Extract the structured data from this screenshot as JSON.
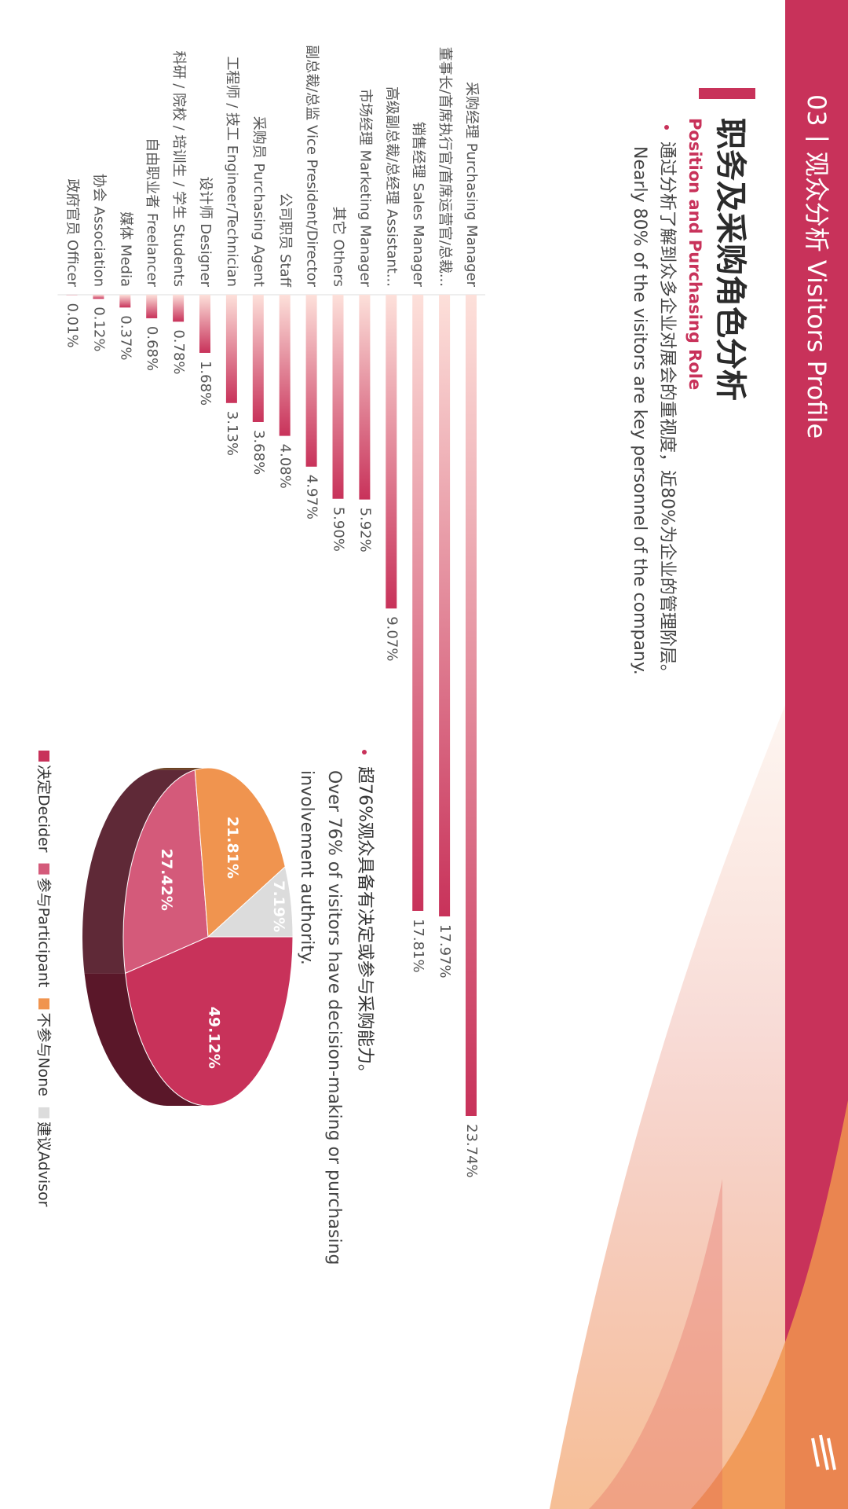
{
  "text": {
    "section": "03丨观众分析 Visitors Profile",
    "title": "职务及采购角色分析",
    "subtitle": "Position and Purchasing Role",
    "bullet_1_cn": "通过分析了解到众多企业对展会的重视度，近80%为企业的管理阶层。",
    "bullet_1_en": "Nearly 80% of the visitors are key personnel of the company.",
    "bullet_2_cn": "超76%观众具备有决定或参与采购能力。",
    "bullet_2_en_1": "Over 76% of visitors have decision-making or purchasing",
    "bullet_2_en_2": "involvement authority."
  },
  "chart_data": [
    {
      "type": "bar",
      "orientation": "horizontal",
      "color": "#c8325a",
      "categories": [
        "采购经理 Purchasing Manager",
        "董事长/首席执行官/首席运营官/总裁...",
        "销售经理 Sales Manager",
        "高级副总裁/总经理 Assistant...",
        "市场经理 Marketing Manager",
        "其它 Others",
        "副总裁/总监 Vice President/Director",
        "公司职员 Staff",
        "采购员 Purchasing Agent",
        "工程师 / 技工 Engineer/Technician",
        "设计师 Designer",
        "科研 / 院校 / 培训生 / 学生 Students",
        "自由职业者 Freelancer",
        "媒体 Media",
        "协会 Association",
        "政府官员 Officer"
      ],
      "values": [
        23.74,
        17.97,
        17.81,
        9.07,
        5.92,
        5.9,
        4.97,
        4.08,
        3.68,
        3.13,
        1.68,
        0.78,
        0.68,
        0.37,
        0.12,
        0.01
      ],
      "value_labels": [
        "23.74%",
        "17.97%",
        "17.81%",
        "9.07%",
        "5.92%",
        "5.90%",
        "4.97%",
        "4.08%",
        "3.68%",
        "3.13%",
        "1.68%",
        "0.78%",
        "0.68%",
        "0.37%",
        "0.12%",
        "0.01%"
      ]
    },
    {
      "type": "pie",
      "categories": [
        "决定Decider",
        "参与Participant",
        "不参与None",
        "建议Advisor"
      ],
      "values": [
        49.12,
        27.42,
        21.81,
        7.19
      ],
      "value_labels": [
        "49.12%",
        "27.42%",
        "21.81%",
        "7.19%"
      ],
      "colors": [
        "#c8325a",
        "#d45a7a",
        "#f0944f",
        "#dcdcdc"
      ]
    }
  ]
}
